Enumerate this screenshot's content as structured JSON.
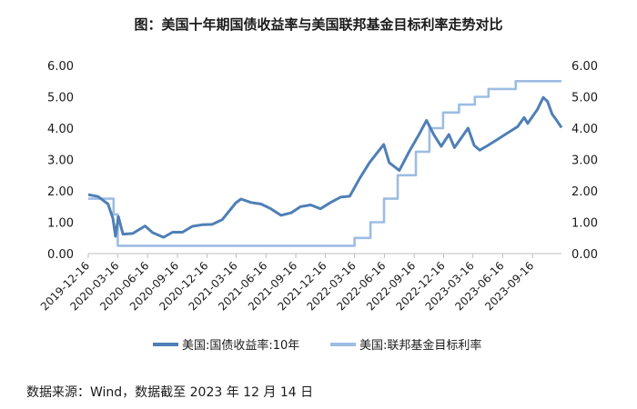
{
  "chart_data": {
    "type": "line",
    "title": "图：美国十年期国债收益率与美国联邦基金目标利率走势对比",
    "ylim": [
      0,
      6
    ],
    "y_ticks": [
      "0.00",
      "1.00",
      "2.00",
      "3.00",
      "4.00",
      "5.00",
      "6.00"
    ],
    "y2_ticks": [
      "0.00",
      "1.00",
      "2.00",
      "3.00",
      "4.00",
      "5.00",
      "6.00"
    ],
    "x_range": [
      "2019-12-16",
      "2023-12-14"
    ],
    "x_ticks": [
      "2019-12-16",
      "2020-03-16",
      "2020-06-16",
      "2020-09-16",
      "2020-12-16",
      "2021-03-16",
      "2021-06-16",
      "2021-09-16",
      "2021-12-16",
      "2022-03-16",
      "2022-06-16",
      "2022-09-16",
      "2022-12-16",
      "2023-03-16",
      "2023-06-16",
      "2023-09-16"
    ],
    "legend_position": "bottom",
    "grid": false,
    "series": [
      {
        "name": "美国:国债收益率:10年",
        "color": "#4f7fb5",
        "points": [
          [
            "2019-12-16",
            1.88
          ],
          [
            "2020-01-15",
            1.82
          ],
          [
            "2020-02-15",
            1.58
          ],
          [
            "2020-03-01",
            1.12
          ],
          [
            "2020-03-09",
            0.55
          ],
          [
            "2020-03-18",
            1.18
          ],
          [
            "2020-04-01",
            0.62
          ],
          [
            "2020-05-01",
            0.64
          ],
          [
            "2020-06-08",
            0.88
          ],
          [
            "2020-07-01",
            0.67
          ],
          [
            "2020-08-04",
            0.52
          ],
          [
            "2020-09-01",
            0.68
          ],
          [
            "2020-10-01",
            0.68
          ],
          [
            "2020-11-01",
            0.87
          ],
          [
            "2020-12-01",
            0.92
          ],
          [
            "2021-01-01",
            0.93
          ],
          [
            "2021-02-01",
            1.08
          ],
          [
            "2021-03-15",
            1.62
          ],
          [
            "2021-03-31",
            1.74
          ],
          [
            "2021-05-01",
            1.63
          ],
          [
            "2021-06-01",
            1.58
          ],
          [
            "2021-07-01",
            1.43
          ],
          [
            "2021-08-01",
            1.22
          ],
          [
            "2021-09-01",
            1.3
          ],
          [
            "2021-10-01",
            1.5
          ],
          [
            "2021-11-01",
            1.55
          ],
          [
            "2021-12-01",
            1.43
          ],
          [
            "2022-01-01",
            1.63
          ],
          [
            "2022-02-01",
            1.8
          ],
          [
            "2022-03-01",
            1.83
          ],
          [
            "2022-04-01",
            2.4
          ],
          [
            "2022-05-01",
            2.9
          ],
          [
            "2022-06-14",
            3.48
          ],
          [
            "2022-07-01",
            2.9
          ],
          [
            "2022-08-01",
            2.65
          ],
          [
            "2022-09-01",
            3.26
          ],
          [
            "2022-10-01",
            3.8
          ],
          [
            "2022-10-24",
            4.25
          ],
          [
            "2022-11-15",
            3.8
          ],
          [
            "2022-12-08",
            3.42
          ],
          [
            "2023-01-01",
            3.8
          ],
          [
            "2023-01-18",
            3.38
          ],
          [
            "2023-03-01",
            4.0
          ],
          [
            "2023-03-20",
            3.45
          ],
          [
            "2023-04-06",
            3.3
          ],
          [
            "2023-05-01",
            3.45
          ],
          [
            "2023-06-01",
            3.65
          ],
          [
            "2023-07-01",
            3.85
          ],
          [
            "2023-08-01",
            4.05
          ],
          [
            "2023-08-21",
            4.34
          ],
          [
            "2023-09-01",
            4.15
          ],
          [
            "2023-10-01",
            4.6
          ],
          [
            "2023-10-19",
            4.98
          ],
          [
            "2023-11-01",
            4.85
          ],
          [
            "2023-11-15",
            4.45
          ],
          [
            "2023-12-01",
            4.22
          ],
          [
            "2023-12-14",
            4.02
          ]
        ]
      },
      {
        "name": "美国:联邦基金目标利率",
        "color": "#9dbde3",
        "points": [
          [
            "2019-12-16",
            1.75
          ],
          [
            "2020-03-03",
            1.75
          ],
          [
            "2020-03-03",
            1.25
          ],
          [
            "2020-03-16",
            1.25
          ],
          [
            "2020-03-16",
            0.25
          ],
          [
            "2022-03-16",
            0.25
          ],
          [
            "2022-03-16",
            0.5
          ],
          [
            "2022-05-04",
            0.5
          ],
          [
            "2022-05-04",
            1.0
          ],
          [
            "2022-06-15",
            1.0
          ],
          [
            "2022-06-15",
            1.75
          ],
          [
            "2022-07-27",
            1.75
          ],
          [
            "2022-07-27",
            2.5
          ],
          [
            "2022-09-21",
            2.5
          ],
          [
            "2022-09-21",
            3.25
          ],
          [
            "2022-11-02",
            3.25
          ],
          [
            "2022-11-02",
            4.0
          ],
          [
            "2022-12-14",
            4.0
          ],
          [
            "2022-12-14",
            4.5
          ],
          [
            "2023-02-01",
            4.5
          ],
          [
            "2023-02-01",
            4.75
          ],
          [
            "2023-03-22",
            4.75
          ],
          [
            "2023-03-22",
            5.0
          ],
          [
            "2023-05-03",
            5.0
          ],
          [
            "2023-05-03",
            5.25
          ],
          [
            "2023-07-26",
            5.25
          ],
          [
            "2023-07-26",
            5.5
          ],
          [
            "2023-12-14",
            5.5
          ]
        ]
      }
    ]
  },
  "source": "数据来源：Wind，数据截至 2023 年 12 月 14 日"
}
